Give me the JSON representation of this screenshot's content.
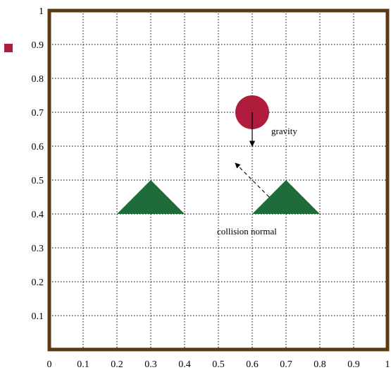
{
  "figure": {
    "x_ticks": [
      "0",
      "0.1",
      "0.2",
      "0.3",
      "0.4",
      "0.5",
      "0.6",
      "0.7",
      "0.8",
      "0.9",
      "1"
    ],
    "y_ticks": [
      "0.1",
      "0.2",
      "0.3",
      "0.4",
      "0.5",
      "0.6",
      "0.7",
      "0.8",
      "0.9",
      "1"
    ],
    "labels": {
      "gravity": "gravity",
      "collision_normal": "collision normal"
    },
    "colors": {
      "frame": "#5a3a12",
      "grid": "#000000",
      "ball": "#b01c3c",
      "triangle": "#1f6b3a",
      "legend_marker": "#b01c3c"
    },
    "scene": {
      "ball": {
        "center": [
          0.6,
          0.7
        ],
        "radius": 0.05
      },
      "triangles": [
        {
          "points": [
            [
              0.2,
              0.4
            ],
            [
              0.4,
              0.4
            ],
            [
              0.3,
              0.5
            ]
          ]
        },
        {
          "points": [
            [
              0.6,
              0.4
            ],
            [
              0.8,
              0.4
            ],
            [
              0.7,
              0.5
            ]
          ]
        }
      ],
      "gravity_arrow": {
        "from": [
          0.6,
          0.7
        ],
        "to": [
          0.6,
          0.6
        ]
      },
      "normal_arrow": {
        "from": [
          0.65,
          0.45
        ],
        "to": [
          0.55,
          0.55
        ]
      }
    }
  }
}
